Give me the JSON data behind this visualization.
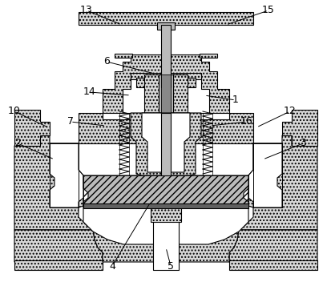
{
  "bg": "#ffffff",
  "lc": "#000000",
  "lw": 0.7,
  "fill_body": "#d8d8d8",
  "fill_white": "#ffffff",
  "fill_dark": "#888888",
  "fill_med": "#bbbbbb",
  "fill_hatch": "#cccccc",
  "annotations": [
    [
      "13",
      108,
      354,
      152,
      336,
      false
    ],
    [
      "15",
      335,
      354,
      282,
      336,
      false
    ],
    [
      "6",
      133,
      290,
      193,
      275,
      false
    ],
    [
      "1",
      294,
      242,
      255,
      248,
      false
    ],
    [
      "14",
      112,
      252,
      163,
      248,
      false
    ],
    [
      "7",
      88,
      215,
      132,
      210,
      false
    ],
    [
      "16",
      308,
      215,
      262,
      210,
      false
    ],
    [
      "10",
      18,
      228,
      60,
      208,
      false
    ],
    [
      "12",
      362,
      228,
      320,
      208,
      false
    ],
    [
      "2",
      22,
      188,
      68,
      168,
      false
    ],
    [
      "3",
      378,
      188,
      328,
      168,
      false
    ],
    [
      "4",
      140,
      35,
      188,
      115,
      false
    ],
    [
      "5",
      213,
      35,
      207,
      58,
      false
    ]
  ]
}
